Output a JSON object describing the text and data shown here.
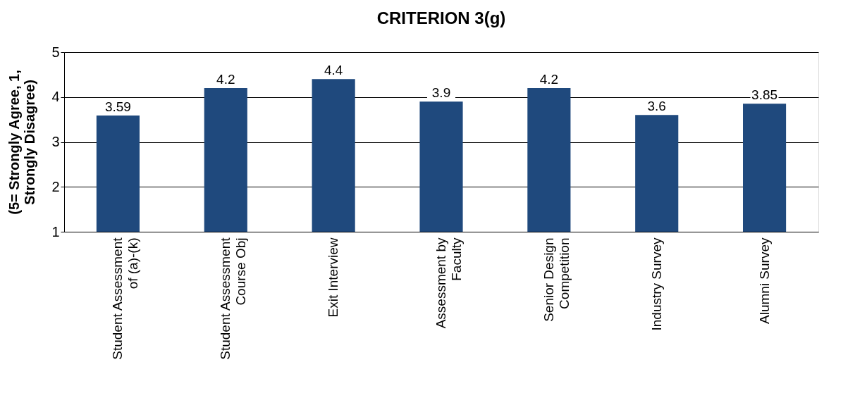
{
  "chart_data": {
    "type": "bar",
    "title": "CRITERION 3(g)",
    "ylabel": "(5= Strongly Agree, 1, Strongly Disagree)",
    "categories": [
      "Student Assessment of (a)-(k)",
      "Student Assessment Course Obj",
      "Exit Interview",
      "Assessment by Faculty",
      "Senior Design Competition",
      "Industry Survey",
      "Alumni Survey"
    ],
    "values": [
      3.59,
      4.2,
      4.4,
      3.9,
      4.2,
      3.6,
      3.85
    ],
    "color": "#1f497d",
    "ylim": [
      1,
      5
    ],
    "yticks": [
      1,
      2,
      3,
      4,
      5
    ],
    "grid": "y",
    "data_labels": true
  }
}
